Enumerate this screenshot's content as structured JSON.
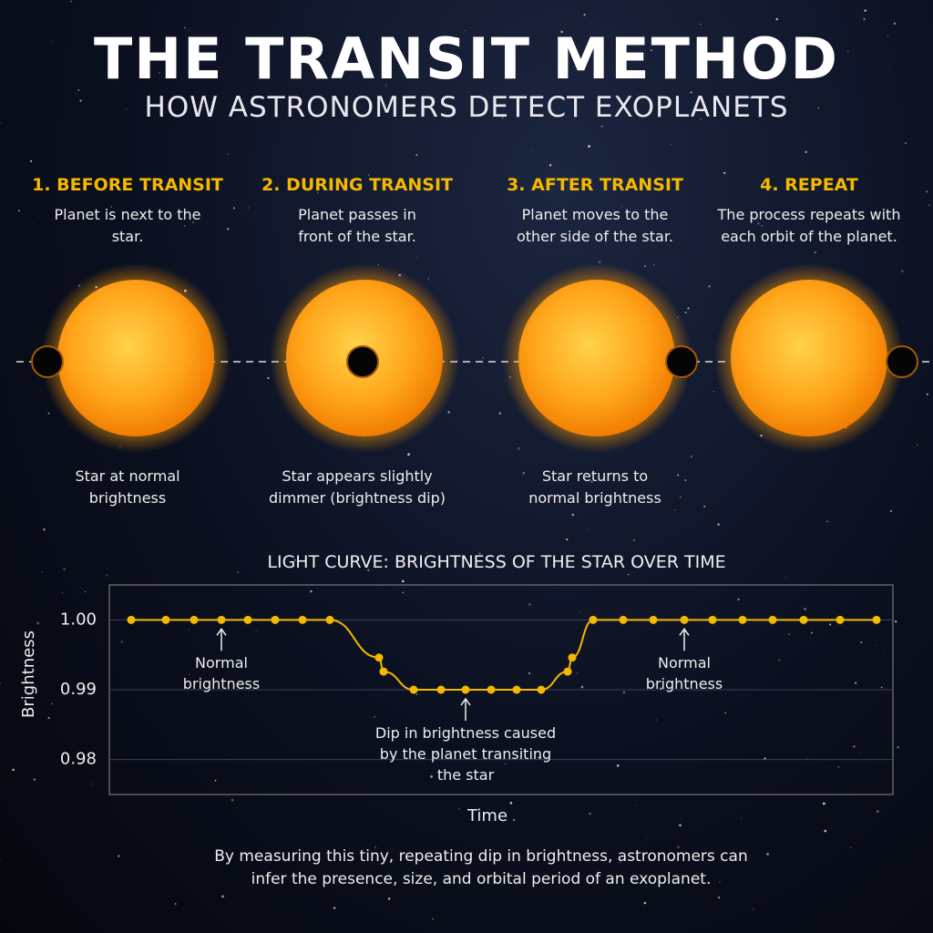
{
  "header": {
    "title": "THE TRANSIT METHOD",
    "subtitle": "HOW ASTRONOMERS DETECT EXOPLANETS"
  },
  "steps": [
    {
      "heading": "1. BEFORE TRANSIT",
      "description": "Planet is next to the star.",
      "caption": "Star at normal brightness"
    },
    {
      "heading": "2. DURING TRANSIT",
      "description": "Planet passes in front of the star.",
      "caption": "Star appears slightly dimmer (brightness dip)"
    },
    {
      "heading": "3. AFTER TRANSIT",
      "description": "Planet moves to the other side of the star.",
      "caption": "Star returns to normal brightness"
    },
    {
      "heading": "4. REPEAT",
      "description": "The process repeats with each orbit of the planet."
    }
  ],
  "chart_data": {
    "type": "line",
    "title": "LIGHT CURVE: BRIGHTNESS OF THE STAR OVER TIME",
    "x_label": "Time",
    "y_label": "Brightness",
    "x": [
      2.4,
      6.2,
      9.3,
      12.3,
      15.2,
      18.2,
      21.2,
      24.2,
      29.6,
      30.1,
      33.4,
      36.4,
      39.1,
      41.9,
      44.7,
      47.4,
      50.3,
      50.8,
      53.1,
      56.4,
      59.7,
      63.1,
      66.2,
      69.5,
      72.8,
      76.2,
      80.2,
      84.2
    ],
    "values": [
      1,
      1,
      1,
      1,
      1,
      1,
      1,
      1,
      0.9946,
      0.9926,
      0.99,
      0.99,
      0.99,
      0.99,
      0.99,
      0.99,
      0.9926,
      0.9946,
      1,
      1,
      1,
      1,
      1,
      1,
      1,
      1,
      1,
      1
    ],
    "color": "#f5b800",
    "xlim": [
      0,
      86
    ],
    "ylim": [
      0.975,
      1.005
    ],
    "yticks": [
      {
        "value": 1,
        "label": "1.00"
      },
      0.99,
      0.98
    ],
    "grid": true,
    "annotations": [
      "Normal brightness",
      "Dip in brightness caused by the planet transiting the star",
      "Normal brightness"
    ]
  },
  "footer": "By measuring this tiny, repeating dip in brightness, astronomers can infer the presence, size, and orbital period of an exoplanet."
}
